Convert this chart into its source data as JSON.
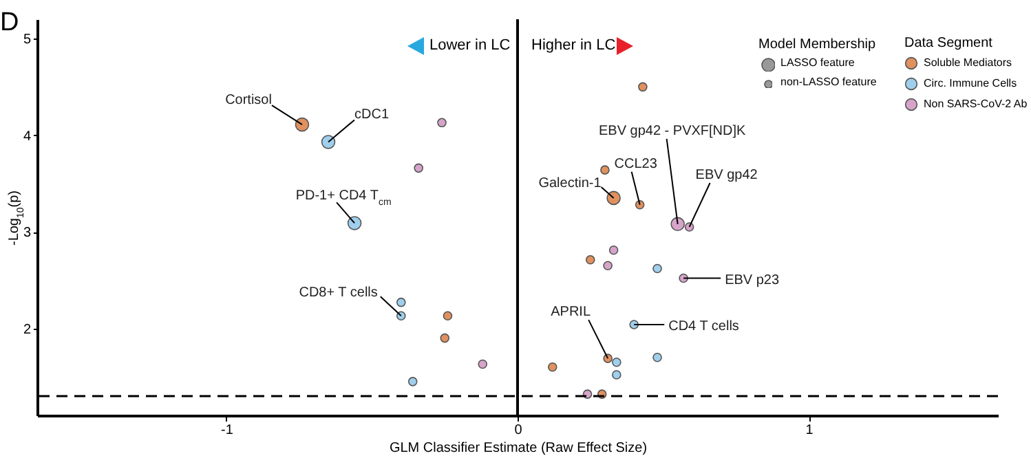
{
  "chart_data": {
    "type": "scatter",
    "xlabel": "GLM Classifier Estimate (Raw Effect Size)",
    "ylabel": "-Log$_{10}$(p)",
    "legend_title": "Data Segment",
    "legend": "top right",
    "marker": "circle",
    "xlim": [
      -1.65,
      1.65
    ],
    "xticks": [
      {
        "value": -1,
        "label": "-1"
      },
      0,
      1
    ],
    "ylim": [
      1.1,
      5.2
    ],
    "yticks": [
      2,
      3,
      4,
      5
    ],
    "size_legend": [
      {
        "value": 1,
        "label": "LASSO feature"
      },
      {
        "value": 0.4,
        "label": "non-LASSO feature"
      }
    ],
    "series": [
      {
        "name": "Soluble Mediators",
        "color": "#e0915f",
        "x": [
          -0.74,
          -0.24,
          -0.25,
          0.43,
          0.3,
          0.33,
          0.42,
          0.25,
          0.31,
          0.12,
          0.29
        ],
        "values": [
          4.11,
          2.13,
          1.9,
          4.5,
          3.64,
          3.35,
          3.28,
          2.71,
          1.69,
          1.6,
          1.32
        ],
        "sizes": [
          1,
          0.4,
          0.4,
          0.4,
          0.4,
          1,
          0.4,
          0.4,
          0.4,
          0.4,
          0.4
        ]
      },
      {
        "name": "Circ. Immune Cells",
        "color": "#9fcfec",
        "x": [
          -0.65,
          -0.56,
          -0.4,
          -0.4,
          -0.36,
          0.48,
          0.4,
          0.34,
          0.48,
          0.34
        ],
        "values": [
          3.93,
          3.09,
          2.27,
          2.13,
          1.45,
          2.62,
          2.04,
          1.65,
          1.7,
          1.52
        ],
        "sizes": [
          1,
          1,
          0.4,
          0.4,
          0.4,
          0.4,
          0.4,
          0.4,
          0.4,
          0.4
        ]
      },
      {
        "name": "Non SARS-CoV-2 Ab",
        "color": "#d7a4c9",
        "x": [
          -0.26,
          -0.34,
          -0.12,
          0.55,
          0.59,
          0.33,
          0.31,
          0.57,
          0.24
        ],
        "values": [
          4.13,
          3.66,
          1.63,
          3.08,
          3.05,
          2.81,
          2.65,
          2.52,
          1.32
        ],
        "sizes": [
          0.4,
          0.4,
          0.4,
          1,
          0.4,
          0.4,
          0.4,
          0.4,
          0.4
        ]
      }
    ],
    "ref_lines": [
      {
        "axis": "x",
        "value": 0,
        "color": "#000000",
        "line_style": "solid"
      },
      {
        "axis": "y",
        "value": 1.3,
        "color": "#000000",
        "line_style": "dashed"
      }
    ],
    "annotations": [
      "D",
      "Lower in LC",
      "Higher in LC",
      "Model Membership",
      {
        "text": "Cortisol",
        "x": -0.74,
        "y": 4.11
      },
      {
        "text": "cDC1",
        "x": -0.65,
        "y": 3.93
      },
      {
        "text": "PD-1+ CD4 T$_{cm}$",
        "x": -0.56,
        "y": 3.09
      },
      {
        "text": "CD8+ T cells",
        "x": -0.4,
        "y": 2.13
      },
      {
        "text": "Galectin-1",
        "x": 0.33,
        "y": 3.35
      },
      {
        "text": "CCL23",
        "x": 0.42,
        "y": 3.28
      },
      {
        "text": "EBV gp42 - PVXF[ND]K",
        "x": 0.55,
        "y": 3.08
      },
      {
        "text": "EBV gp42",
        "x": 0.59,
        "y": 3.05
      },
      {
        "text": "EBV p23",
        "x": 0.57,
        "y": 2.52
      },
      {
        "text": "CD4 T cells",
        "x": 0.4,
        "y": 2.04
      },
      {
        "text": "APRIL",
        "x": 0.31,
        "y": 1.69
      }
    ]
  }
}
